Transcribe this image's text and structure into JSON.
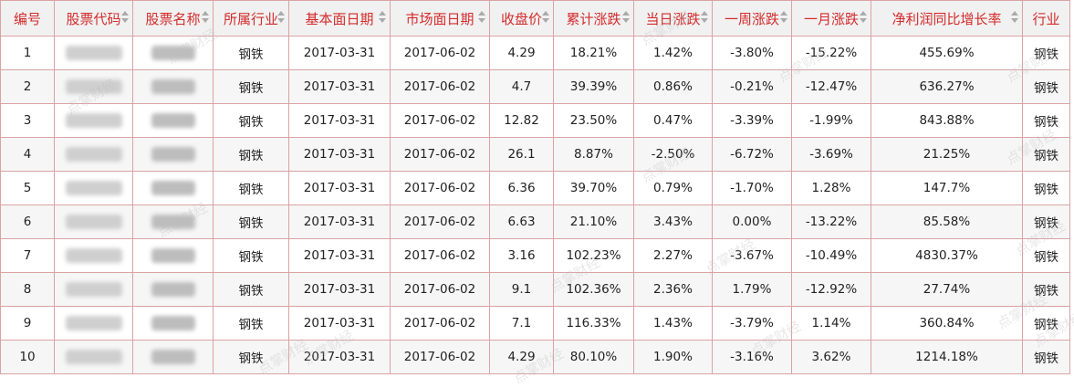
{
  "headers": [
    "编号",
    "股票代码",
    "股票名称",
    "所属行业",
    "基本面日期",
    "市场面日期",
    "收盘价",
    "累计涨跌",
    "当日涨跌",
    "一周涨跌",
    "一月涨跌",
    "净利润同比增长率",
    "行业"
  ],
  "rows": [
    {
      "id": "1",
      "industry": "钢铁",
      "fund_date": "2017-03-31",
      "mkt_date": "2017-06-02",
      "close": "4.29",
      "cum": "18.21%",
      "day": "1.42%",
      "week": "-3.80%",
      "month": "-15.22%",
      "growth": "455.69%",
      "sector": "钢铁"
    },
    {
      "id": "2",
      "industry": "钢铁",
      "fund_date": "2017-03-31",
      "mkt_date": "2017-06-02",
      "close": "4.7",
      "cum": "39.39%",
      "day": "0.86%",
      "week": "-0.21%",
      "month": "-12.47%",
      "growth": "636.27%",
      "sector": "钢铁"
    },
    {
      "id": "3",
      "industry": "钢铁",
      "fund_date": "2017-03-31",
      "mkt_date": "2017-06-02",
      "close": "12.82",
      "cum": "23.50%",
      "day": "0.47%",
      "week": "-3.39%",
      "month": "-1.99%",
      "growth": "843.88%",
      "sector": "钢铁"
    },
    {
      "id": "4",
      "industry": "钢铁",
      "fund_date": "2017-03-31",
      "mkt_date": "2017-06-02",
      "close": "26.1",
      "cum": "8.87%",
      "day": "-2.50%",
      "week": "-6.72%",
      "month": "-3.69%",
      "growth": "21.25%",
      "sector": "钢铁"
    },
    {
      "id": "5",
      "industry": "钢铁",
      "fund_date": "2017-03-31",
      "mkt_date": "2017-06-02",
      "close": "6.36",
      "cum": "39.70%",
      "day": "0.79%",
      "week": "-1.70%",
      "month": "1.28%",
      "growth": "147.7%",
      "sector": "钢铁"
    },
    {
      "id": "6",
      "industry": "钢铁",
      "fund_date": "2017-03-31",
      "mkt_date": "2017-06-02",
      "close": "6.63",
      "cum": "21.10%",
      "day": "3.43%",
      "week": "0.00%",
      "month": "-13.22%",
      "growth": "85.58%",
      "sector": "钢铁"
    },
    {
      "id": "7",
      "industry": "钢铁",
      "fund_date": "2017-03-31",
      "mkt_date": "2017-06-02",
      "close": "3.16",
      "cum": "102.23%",
      "day": "2.27%",
      "week": "-3.67%",
      "month": "-10.49%",
      "growth": "4830.37%",
      "sector": "钢铁"
    },
    {
      "id": "8",
      "industry": "钢铁",
      "fund_date": "2017-03-31",
      "mkt_date": "2017-06-02",
      "close": "9.1",
      "cum": "102.36%",
      "day": "2.36%",
      "week": "1.79%",
      "month": "-12.92%",
      "growth": "27.74%",
      "sector": "钢铁"
    },
    {
      "id": "9",
      "industry": "钢铁",
      "fund_date": "2017-03-31",
      "mkt_date": "2017-06-02",
      "close": "7.1",
      "cum": "116.33%",
      "day": "1.43%",
      "week": "-3.79%",
      "month": "1.14%",
      "growth": "360.84%",
      "sector": "钢铁"
    },
    {
      "id": "10",
      "industry": "钢铁",
      "fund_date": "2017-03-31",
      "mkt_date": "2017-06-02",
      "close": "4.29",
      "cum": "80.10%",
      "day": "1.90%",
      "week": "-3.16%",
      "month": "3.62%",
      "growth": "1214.18%",
      "sector": "钢铁"
    }
  ],
  "watermark_text": "点掌财经",
  "colors": {
    "header_text": "#d42b2b",
    "border": "#d9a3a3",
    "header_bg": "#f1f1f1",
    "stripe": "#f6f6f6"
  }
}
